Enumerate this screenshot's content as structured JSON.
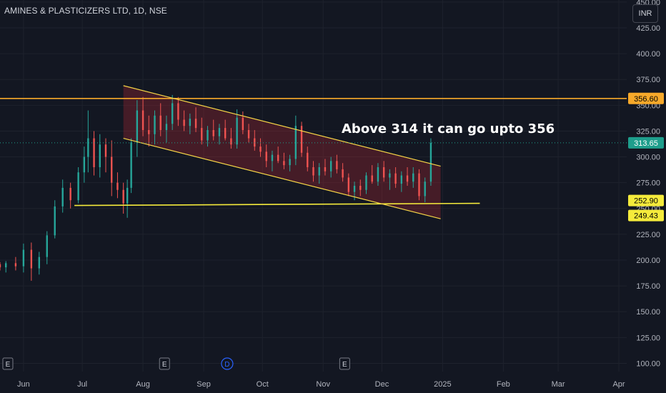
{
  "header": {
    "symbol_title": "AMINES & PLASTICIZERS LTD, 1D, NSE"
  },
  "toolbar": {
    "currency": "INR"
  },
  "annotation": {
    "text": "Above 314 it can go upto 356"
  },
  "colors": {
    "background": "#131722",
    "grid": "#1e222d",
    "up": "#26a69a",
    "down": "#ef5350",
    "channel": "#f5d547",
    "resistance": "#f7a92a",
    "support": "#f5eb3b",
    "channel_fill": "rgba(178,40,51,0.32)",
    "last_price": "#1e9e8c"
  },
  "chart_data": {
    "type": "candlestick",
    "title": "AMINES & PLASTICIZERS LTD, 1D, NSE",
    "currency": "INR",
    "x_tick_labels": [
      "Jun",
      "Jul",
      "Aug",
      "Sep",
      "Oct",
      "Nov",
      "Dec",
      "2025",
      "Feb",
      "Mar",
      "Apr"
    ],
    "y_ticks": [
      100,
      125,
      150,
      175,
      200,
      225,
      250,
      275,
      300,
      325,
      350,
      375,
      400,
      425,
      450
    ],
    "ylim": [
      92,
      452
    ],
    "date_range": [
      "2024-05-20",
      "2025-04-05"
    ],
    "price_labels": [
      {
        "name": "resistance",
        "value": "356.60"
      },
      {
        "name": "last_price",
        "value": "313.65"
      },
      {
        "name": "support_line",
        "value": "252.90"
      },
      {
        "name": "channel_bottom",
        "value": "249.43"
      }
    ],
    "lines": {
      "resistance": {
        "y": 356.6
      },
      "support": {
        "from": [
          "2024-06-27",
          252.9
        ],
        "to": [
          "2025-01-20",
          255.0
        ]
      },
      "channel_upper": {
        "from": [
          "2024-07-22",
          369
        ],
        "to": [
          "2024-12-31",
          291
        ]
      },
      "channel_lower": {
        "from": [
          "2024-07-22",
          318
        ],
        "to": [
          "2024-12-31",
          240
        ]
      }
    },
    "event_markers": [
      {
        "label": "E",
        "date": "2024-05-24"
      },
      {
        "label": "E",
        "date": "2024-08-12"
      },
      {
        "label": "D",
        "date": "2024-09-13"
      },
      {
        "label": "E",
        "date": "2024-11-12"
      }
    ],
    "ohlc": [
      [
        "2024-05-20",
        196,
        198,
        190,
        193
      ],
      [
        "2024-05-23",
        193,
        199,
        188,
        197
      ],
      [
        "2024-05-28",
        197,
        203,
        190,
        194
      ],
      [
        "2024-06-01",
        194,
        216,
        188,
        210
      ],
      [
        "2024-06-05",
        210,
        217,
        180,
        192
      ],
      [
        "2024-06-09",
        192,
        208,
        186,
        203
      ],
      [
        "2024-06-13",
        203,
        228,
        196,
        224
      ],
      [
        "2024-06-17",
        224,
        258,
        221,
        252
      ],
      [
        "2024-06-21",
        252,
        278,
        246,
        270
      ],
      [
        "2024-06-25",
        270,
        275,
        250,
        258
      ],
      [
        "2024-06-29",
        258,
        290,
        255,
        285
      ],
      [
        "2024-07-02",
        285,
        310,
        275,
        300
      ],
      [
        "2024-07-04",
        300,
        345,
        285,
        318
      ],
      [
        "2024-07-07",
        318,
        325,
        282,
        290
      ],
      [
        "2024-07-10",
        290,
        322,
        280,
        312
      ],
      [
        "2024-07-13",
        312,
        318,
        285,
        300
      ],
      [
        "2024-07-16",
        300,
        316,
        262,
        275
      ],
      [
        "2024-07-19",
        275,
        285,
        260,
        268
      ],
      [
        "2024-07-22",
        268,
        275,
        245,
        255
      ],
      [
        "2024-07-24",
        255,
        278,
        241,
        270
      ],
      [
        "2024-07-26",
        270,
        318,
        265,
        314
      ],
      [
        "2024-07-29",
        314,
        355,
        300,
        345
      ],
      [
        "2024-08-01",
        345,
        358,
        320,
        326
      ],
      [
        "2024-08-04",
        326,
        340,
        310,
        322
      ],
      [
        "2024-08-07",
        322,
        345,
        312,
        340
      ],
      [
        "2024-08-10",
        340,
        352,
        320,
        326
      ],
      [
        "2024-08-13",
        326,
        340,
        314,
        332
      ],
      [
        "2024-08-16",
        332,
        360,
        326,
        352
      ],
      [
        "2024-08-19",
        352,
        358,
        330,
        336
      ],
      [
        "2024-08-22",
        336,
        345,
        325,
        330
      ],
      [
        "2024-08-25",
        330,
        342,
        322,
        337
      ],
      [
        "2024-08-28",
        337,
        348,
        324,
        328
      ],
      [
        "2024-08-31",
        328,
        338,
        312,
        316
      ],
      [
        "2024-09-03",
        316,
        330,
        310,
        326
      ],
      [
        "2024-09-06",
        326,
        336,
        316,
        320
      ],
      [
        "2024-09-09",
        320,
        332,
        312,
        328
      ],
      [
        "2024-09-12",
        328,
        336,
        316,
        318
      ],
      [
        "2024-09-15",
        318,
        328,
        308,
        312
      ],
      [
        "2024-09-18",
        312,
        346,
        308,
        338
      ],
      [
        "2024-09-21",
        338,
        344,
        322,
        326
      ],
      [
        "2024-09-24",
        326,
        332,
        314,
        318
      ],
      [
        "2024-09-27",
        318,
        326,
        306,
        310
      ],
      [
        "2024-09-30",
        310,
        318,
        300,
        305
      ],
      [
        "2024-10-03",
        305,
        312,
        290,
        296
      ],
      [
        "2024-10-06",
        296,
        306,
        286,
        302
      ],
      [
        "2024-10-09",
        302,
        310,
        294,
        296
      ],
      [
        "2024-10-12",
        296,
        304,
        288,
        292
      ],
      [
        "2024-10-15",
        292,
        302,
        286,
        298
      ],
      [
        "2024-10-18",
        298,
        340,
        292,
        330
      ],
      [
        "2024-10-21",
        330,
        334,
        300,
        304
      ],
      [
        "2024-10-24",
        304,
        310,
        286,
        290
      ],
      [
        "2024-10-27",
        290,
        296,
        276,
        282
      ],
      [
        "2024-10-30",
        282,
        294,
        274,
        290
      ],
      [
        "2024-11-02",
        290,
        298,
        282,
        286
      ],
      [
        "2024-11-05",
        286,
        300,
        280,
        296
      ],
      [
        "2024-11-08",
        296,
        302,
        284,
        288
      ],
      [
        "2024-11-11",
        288,
        294,
        276,
        280
      ],
      [
        "2024-11-14",
        280,
        284,
        262,
        266
      ],
      [
        "2024-11-17",
        266,
        276,
        258,
        272
      ],
      [
        "2024-11-20",
        272,
        278,
        262,
        268
      ],
      [
        "2024-11-23",
        268,
        285,
        264,
        282
      ],
      [
        "2024-11-26",
        282,
        292,
        274,
        276
      ],
      [
        "2024-11-29",
        276,
        294,
        272,
        290
      ],
      [
        "2024-12-02",
        290,
        296,
        276,
        280
      ],
      [
        "2024-12-05",
        280,
        288,
        268,
        284
      ],
      [
        "2024-12-08",
        284,
        290,
        270,
        274
      ],
      [
        "2024-12-11",
        274,
        286,
        266,
        282
      ],
      [
        "2024-12-14",
        282,
        290,
        272,
        276
      ],
      [
        "2024-12-17",
        276,
        290,
        270,
        284
      ],
      [
        "2024-12-20",
        284,
        288,
        258,
        262
      ],
      [
        "2024-12-23",
        262,
        280,
        256,
        276
      ],
      [
        "2024-12-26",
        276,
        318,
        272,
        313.65
      ]
    ]
  }
}
